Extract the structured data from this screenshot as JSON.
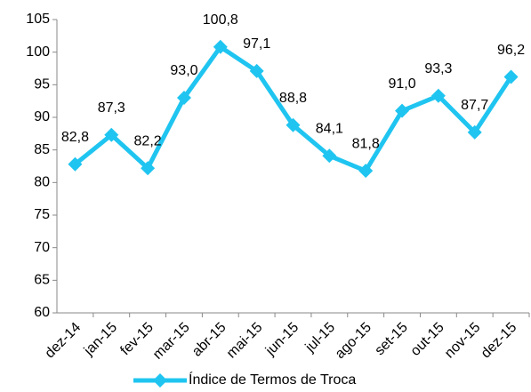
{
  "chart_data": {
    "type": "line",
    "categories": [
      "dez-14",
      "jan-15",
      "fev-15",
      "mar-15",
      "abr-15",
      "mai-15",
      "jun-15",
      "jul-15",
      "ago-15",
      "set-15",
      "out-15",
      "nov-15",
      "dez-15"
    ],
    "series": [
      {
        "name": "Índice de Termos de Troca",
        "color": "#1fc5f0",
        "values": [
          82.8,
          87.3,
          82.2,
          93.0,
          100.8,
          97.1,
          88.8,
          84.1,
          81.8,
          91.0,
          93.3,
          87.7,
          96.2
        ],
        "value_labels": [
          "82,8",
          "87,3",
          "82,2",
          "93,0",
          "100,8",
          "97,1",
          "88,8",
          "84,1",
          "81,8",
          "91,0",
          "93,3",
          "87,7",
          "96,2"
        ]
      }
    ],
    "ylim": [
      60,
      105
    ],
    "yticks": [
      60,
      65,
      70,
      75,
      80,
      85,
      90,
      95,
      100,
      105
    ],
    "grid": false,
    "legend": "bottom"
  }
}
